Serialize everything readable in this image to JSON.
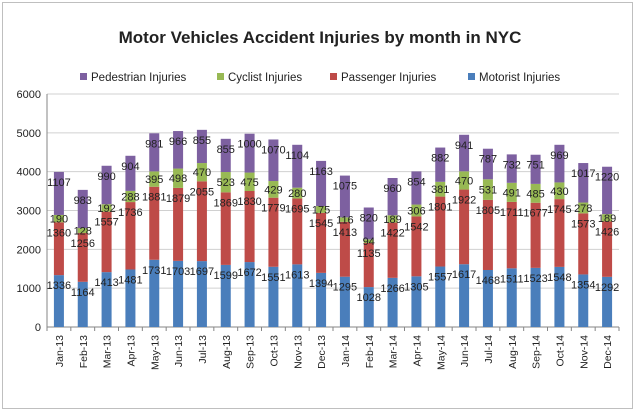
{
  "chart_data": {
    "type": "bar",
    "stacked": true,
    "title": "Motor Vehicles Accident Injuries by month in NYC",
    "xlabel": "",
    "ylabel": "",
    "ylim": [
      0,
      6000
    ],
    "yticks": [
      "0",
      "1000",
      "2000",
      "3000",
      "4000",
      "5000",
      "6000"
    ],
    "grid": true,
    "legend_position": "top",
    "categories": [
      "Jan-13",
      "Feb-13",
      "Mar-13",
      "Apr-13",
      "May-13",
      "Jun-13",
      "Jul-13",
      "Aug-13",
      "Sep-13",
      "Oct-13",
      "Nov-13",
      "Dec-13",
      "Jan-14",
      "Feb-14",
      "Mar-14",
      "Apr-14",
      "May-14",
      "Jun-14",
      "Jul-14",
      "Aug-14",
      "Sep-14",
      "Oct-14",
      "Nov-14",
      "Dec-14"
    ],
    "series": [
      {
        "name": "Motorist Injuries",
        "color": "#4a7ebb",
        "values": [
          1336,
          1164,
          1413,
          1481,
          1731,
          1703,
          1697,
          1599,
          1672,
          1551,
          1613,
          1394,
          1295,
          1028,
          1266,
          1305,
          1557,
          1617,
          1468,
          1511,
          1523,
          1548,
          1354,
          1292
        ]
      },
      {
        "name": "Passenger Injuries",
        "color": "#be4b48",
        "values": [
          1360,
          1256,
          1557,
          1736,
          1881,
          1879,
          2055,
          1869,
          1830,
          1779,
          1695,
          1545,
          1413,
          1135,
          1422,
          1542,
          1801,
          1922,
          1805,
          1711,
          1677,
          1745,
          1573,
          1426
        ]
      },
      {
        "name": "Cyclist Injuries",
        "color": "#98b954",
        "values": [
          190,
          128,
          192,
          288,
          395,
          498,
          470,
          523,
          475,
          429,
          280,
          175,
          116,
          94,
          189,
          306,
          381,
          470,
          531,
          491,
          485,
          430,
          278,
          189
        ]
      },
      {
        "name": "Pedestrian Injuries",
        "color": "#7d60a0",
        "values": [
          1107,
          983,
          990,
          904,
          981,
          966,
          855,
          855,
          1000,
          1070,
          1104,
          1163,
          1075,
          820,
          960,
          854,
          882,
          941,
          787,
          732,
          751,
          969,
          1017,
          1220
        ]
      }
    ],
    "legend_order": [
      3,
      2,
      1,
      0
    ]
  }
}
